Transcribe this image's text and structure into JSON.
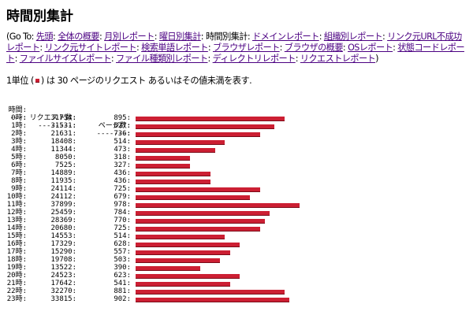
{
  "title": "時間別集計",
  "nav": {
    "prefix": "(Go To: ",
    "links": [
      "先頭",
      "全体の概要",
      "月別レポート",
      "曜日別集計",
      "時間別集計",
      "ドメインレポート",
      "組織別レポート",
      "リンク元URL不成功レポート",
      "リンク元サイトレポート",
      "検索単語レポート",
      "ブラウザレポート",
      "ブラウザの概要",
      "OSレポート",
      "状態コードレポート",
      "ファイルサイズレポート",
      "ファイル種類別レポート",
      "ディレクトリレポート",
      "リクエストレポート"
    ],
    "current": "時間別集計",
    "separator": ": ",
    "suffix": ")"
  },
  "unit": {
    "before": "1単位 (",
    "after": ") は 30 ページのリクエスト あるいはその値未満を表す."
  },
  "table": {
    "headers": {
      "hour": "時間:",
      "requests": "リクエスト数:",
      "pages": "ページ数:"
    },
    "separators": {
      "hour": "---:",
      "requests": "--------:",
      "pages": "-------:"
    },
    "rows": [
      {
        "hour": "0時:",
        "requests": "31754:",
        "pages": "895:",
        "pages_value": 895
      },
      {
        "hour": "1時:",
        "requests": "31531:",
        "pages": "827:",
        "pages_value": 827
      },
      {
        "hour": "2時:",
        "requests": "21631:",
        "pages": "736:",
        "pages_value": 736
      },
      {
        "hour": "3時:",
        "requests": "18408:",
        "pages": "514:",
        "pages_value": 514
      },
      {
        "hour": "4時:",
        "requests": "11344:",
        "pages": "473:",
        "pages_value": 473
      },
      {
        "hour": "5時:",
        "requests": "8050:",
        "pages": "318:",
        "pages_value": 318
      },
      {
        "hour": "6時:",
        "requests": "7525:",
        "pages": "327:",
        "pages_value": 327
      },
      {
        "hour": "7時:",
        "requests": "14889:",
        "pages": "436:",
        "pages_value": 436
      },
      {
        "hour": "8時:",
        "requests": "11935:",
        "pages": "436:",
        "pages_value": 436
      },
      {
        "hour": "9時:",
        "requests": "24114:",
        "pages": "725:",
        "pages_value": 725
      },
      {
        "hour": "10時:",
        "requests": "24112:",
        "pages": "679:",
        "pages_value": 679
      },
      {
        "hour": "11時:",
        "requests": "37899:",
        "pages": "978:",
        "pages_value": 978
      },
      {
        "hour": "12時:",
        "requests": "25459:",
        "pages": "784:",
        "pages_value": 784
      },
      {
        "hour": "13時:",
        "requests": "28369:",
        "pages": "770:",
        "pages_value": 770
      },
      {
        "hour": "14時:",
        "requests": "20680:",
        "pages": "725:",
        "pages_value": 725
      },
      {
        "hour": "15時:",
        "requests": "14553:",
        "pages": "514:",
        "pages_value": 514
      },
      {
        "hour": "16時:",
        "requests": "17329:",
        "pages": "628:",
        "pages_value": 628
      },
      {
        "hour": "17時:",
        "requests": "15290:",
        "pages": "557:",
        "pages_value": 557
      },
      {
        "hour": "18時:",
        "requests": "19708:",
        "pages": "503:",
        "pages_value": 503
      },
      {
        "hour": "19時:",
        "requests": "13522:",
        "pages": "390:",
        "pages_value": 390
      },
      {
        "hour": "20時:",
        "requests": "24523:",
        "pages": "623:",
        "pages_value": 623
      },
      {
        "hour": "21時:",
        "requests": "17642:",
        "pages": "541:",
        "pages_value": 541
      },
      {
        "hour": "22時:",
        "requests": "32270:",
        "pages": "881:",
        "pages_value": 881
      },
      {
        "hour": "23時:",
        "requests": "33815:",
        "pages": "902:",
        "pages_value": 902
      }
    ]
  },
  "colors": {
    "link": "#4b0082",
    "bar": "#cc1f33"
  }
}
